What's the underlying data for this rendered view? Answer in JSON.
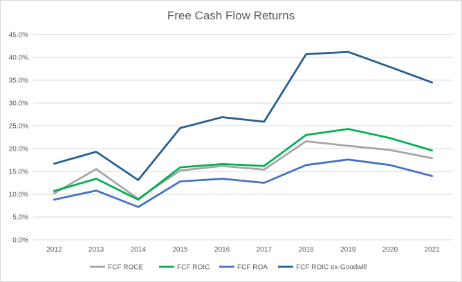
{
  "chart_data": {
    "type": "line",
    "title": "Free Cash Flow Returns",
    "xlabel": "",
    "ylabel": "",
    "categories": [
      "2012",
      "2013",
      "2014",
      "2015",
      "2016",
      "2017",
      "2018",
      "2019",
      "2020",
      "2021"
    ],
    "ylim": [
      0,
      45
    ],
    "yticks": [
      "0.0%",
      "5.0%",
      "10.0%",
      "15.0%",
      "20.0%",
      "25.0%",
      "30.0%",
      "35.0%",
      "40.0%",
      "45.0%"
    ],
    "grid": true,
    "legend": "bottom",
    "series": [
      {
        "name": "FCF ROCE",
        "color": "#a5a5a5",
        "values": [
          10.2,
          15.5,
          9.0,
          15.2,
          16.2,
          15.4,
          21.6,
          20.6,
          19.7,
          17.9
        ]
      },
      {
        "name": "FCF ROIC",
        "color": "#00b050",
        "values": [
          10.7,
          13.4,
          8.8,
          15.9,
          16.6,
          16.2,
          23.0,
          24.3,
          22.3,
          19.6
        ]
      },
      {
        "name": "FCF ROA",
        "color": "#4472c4",
        "values": [
          8.8,
          10.8,
          7.2,
          12.8,
          13.4,
          12.5,
          16.4,
          17.6,
          16.4,
          14.0
        ]
      },
      {
        "name": "FCF ROIC ex-Goodwill",
        "color": "#255e91",
        "values": [
          16.7,
          19.3,
          13.1,
          24.5,
          26.9,
          25.9,
          40.7,
          41.2,
          37.9,
          34.5
        ]
      }
    ]
  }
}
